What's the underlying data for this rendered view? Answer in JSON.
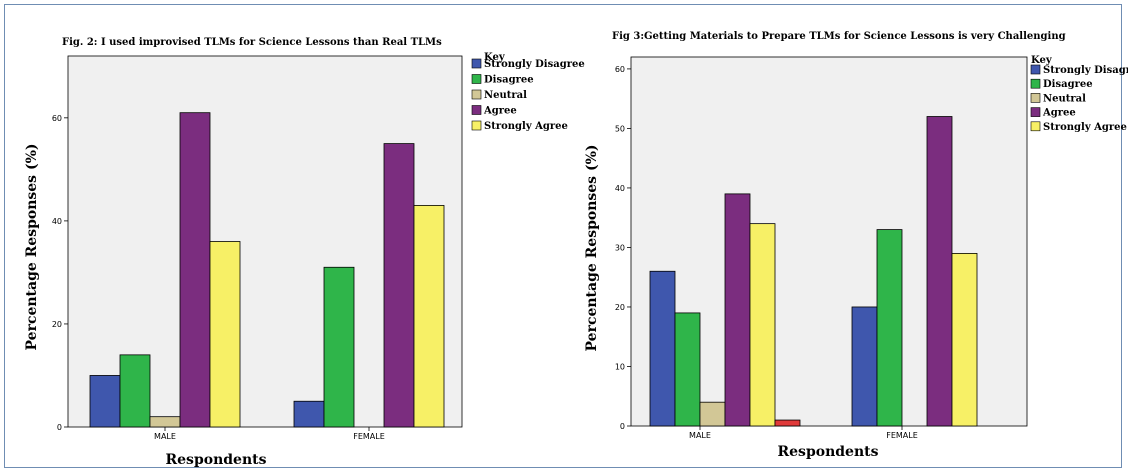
{
  "chart_data": [
    {
      "type": "bar",
      "title": "Fig. 2: I used improvised TLMs for Science Lessons than Real TLMs",
      "xlabel": "Respondents",
      "ylabel": "Percentage Responses (%)",
      "ylim": [
        0,
        72
      ],
      "yticks": [
        0,
        20,
        40,
        60
      ],
      "categories": [
        "MALE",
        "FEMALE"
      ],
      "legend_title": "Key",
      "legend_position": "right",
      "grid": false,
      "series": [
        {
          "name": "Strongly Disagree",
          "color": "#3f57ad",
          "values": [
            10,
            5
          ]
        },
        {
          "name": "Disagree",
          "color": "#2fb54a",
          "values": [
            14,
            31
          ]
        },
        {
          "name": "Neutral",
          "color": "#d2c796",
          "values": [
            2,
            null
          ]
        },
        {
          "name": "Agree",
          "color": "#7b2d7f",
          "values": [
            61,
            55
          ]
        },
        {
          "name": "Strongly Agree",
          "color": "#f7f066",
          "values": [
            36,
            43
          ]
        }
      ]
    },
    {
      "type": "bar",
      "title": "Fig 3:Getting Materials to Prepare TLMs for Science Lessons is very Challenging",
      "xlabel": "Respondents",
      "ylabel": "Percentage Responses (%)",
      "ylim": [
        0,
        62
      ],
      "yticks": [
        0,
        10,
        20,
        30,
        40,
        50,
        60
      ],
      "categories": [
        "MALE",
        "FEMALE"
      ],
      "legend_title": "Key",
      "legend_position": "right",
      "grid": false,
      "series": [
        {
          "name": "Strongly Disagree",
          "color": "#3f57ad",
          "values": [
            26,
            20
          ]
        },
        {
          "name": "Disagree",
          "color": "#2fb54a",
          "values": [
            19,
            33
          ]
        },
        {
          "name": "Neutral",
          "color": "#d2c796",
          "values": [
            4,
            null
          ]
        },
        {
          "name": "Agree",
          "color": "#7b2d7f",
          "values": [
            39,
            52
          ]
        },
        {
          "name": "Strongly Agree",
          "color": "#f7f066",
          "values": [
            34,
            29
          ]
        },
        {
          "name": "",
          "color": "#e03a3a",
          "values": [
            1,
            null
          ]
        }
      ]
    }
  ]
}
